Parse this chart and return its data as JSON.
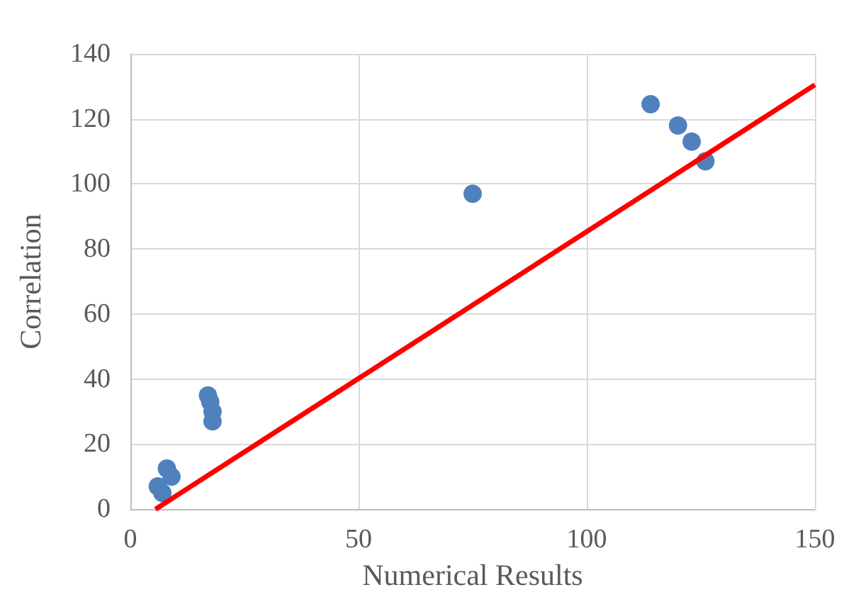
{
  "chart_data": {
    "type": "scatter",
    "xlabel": "Numerical Results",
    "ylabel": "Correlation",
    "xlim": [
      0,
      150
    ],
    "xticks": [
      0,
      50,
      100,
      150
    ],
    "ylim": [
      0,
      140
    ],
    "yticks": [
      0,
      20,
      40,
      60,
      80,
      100,
      120,
      140
    ],
    "grid": true,
    "series": [
      {
        "marker": "circle",
        "color": "#4f81bd",
        "x": [
          6,
          7,
          8,
          9,
          17,
          17.5,
          18,
          18,
          75,
          114,
          120,
          123,
          126
        ],
        "values": [
          7,
          5,
          12.5,
          10,
          35,
          33,
          30,
          27,
          97,
          124.5,
          118,
          113,
          107
        ]
      },
      {
        "type": "line",
        "color": "#ff0000",
        "x": [
          5.5,
          150
        ],
        "values": [
          0,
          130.5
        ]
      }
    ]
  }
}
